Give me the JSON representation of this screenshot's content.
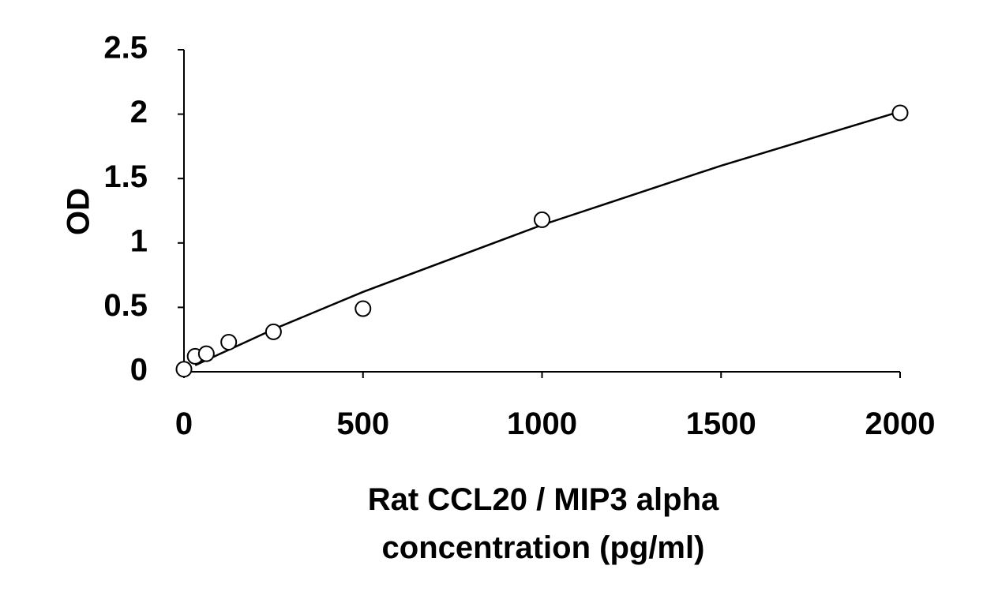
{
  "chart_data": {
    "type": "scatter",
    "title": "",
    "xlabel_lines": [
      "Rat CCL20 / MIP3 alpha",
      "concentration (pg/ml)"
    ],
    "ylabel": "OD",
    "xlim": [
      0,
      2000
    ],
    "ylim": [
      0,
      2.5
    ],
    "x_ticks": [
      0,
      500,
      1000,
      1500,
      2000
    ],
    "x_tick_labels": [
      "0",
      "500",
      "1000",
      "1500",
      "2000"
    ],
    "y_ticks": [
      0,
      0.5,
      1,
      1.5,
      2,
      2.5
    ],
    "y_tick_labels": [
      "0",
      "0.5",
      "1",
      "1.5",
      "2",
      "2.5"
    ],
    "grid": false,
    "legend": "none",
    "colors": {
      "axis": "#000000",
      "marker_stroke": "#000000",
      "marker_fill": "#ffffff",
      "fit_line": "#000000"
    },
    "series": [
      {
        "marker": "open-circle",
        "x": [
          0,
          31.25,
          62.5,
          125,
          250,
          500,
          1000,
          2000
        ],
        "y": [
          0.02,
          0.12,
          0.14,
          0.23,
          0.31,
          0.49,
          1.18,
          2.01
        ]
      }
    ],
    "fit_curve": {
      "x": [
        31.25,
        250,
        500,
        1000,
        1500,
        2000
      ],
      "y": [
        0.05,
        0.33,
        0.62,
        1.14,
        1.6,
        2.02
      ]
    }
  }
}
